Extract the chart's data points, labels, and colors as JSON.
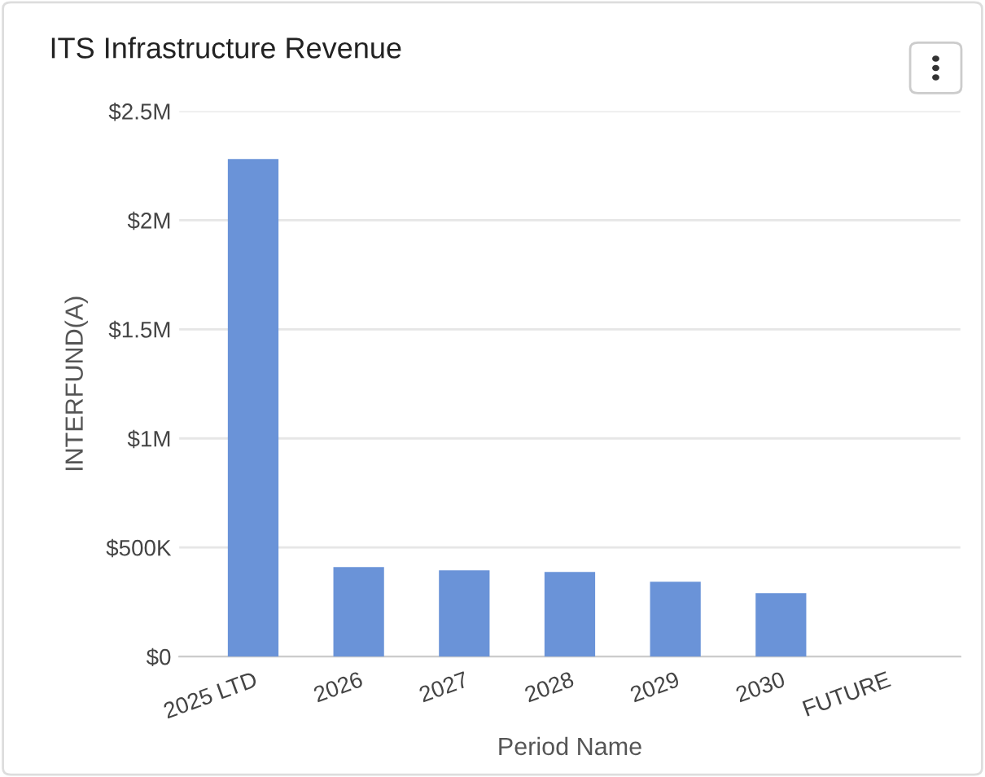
{
  "chart_data": {
    "type": "bar",
    "title": "ITS Infrastructure Revenue",
    "xlabel": "Period Name",
    "ylabel": "INTERFUND(A)",
    "categories": [
      "2025 LTD",
      "2026",
      "2027",
      "2028",
      "2029",
      "2030",
      "FUTURE"
    ],
    "values": [
      2280000,
      410000,
      395000,
      388000,
      343000,
      291000,
      0
    ],
    "color": "#6a93d8",
    "ylim": [
      0,
      2500000
    ],
    "yticks": [
      {
        "value": 0,
        "label": "$0"
      },
      {
        "value": 500000,
        "label": "$500K"
      },
      {
        "value": 1000000,
        "label": "$1M"
      },
      {
        "value": 1500000,
        "label": "$1.5M"
      },
      {
        "value": 2000000,
        "label": "$2M"
      },
      {
        "value": 2500000,
        "label": "$2.5M"
      }
    ],
    "grid": "y",
    "legend": false
  }
}
